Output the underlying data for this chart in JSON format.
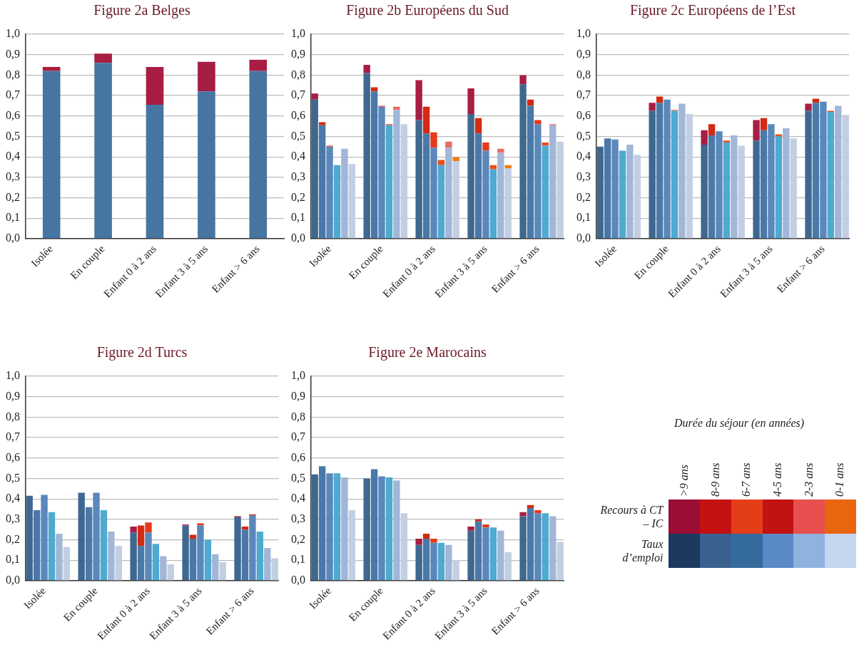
{
  "chart_data": [
    {
      "type": "bar",
      "title": "Figure 2a Belges",
      "stacked": true,
      "grid": "y",
      "categories": [
        "Isolée",
        "En couple",
        "Enfant 0 à 2 ans",
        "Enfant 3 à 5 ans",
        "Enfant > 6 ans"
      ],
      "ylim": [
        0,
        1
      ],
      "yticks": [
        {
          "value": 0,
          "label": "0,0"
        },
        {
          "value": 0.1,
          "label": "0,1"
        },
        {
          "value": 0.2,
          "label": "0,2"
        },
        {
          "value": 0.3,
          "label": "0,3"
        },
        {
          "value": 0.4,
          "label": "0,4"
        },
        {
          "value": 0.5,
          "label": "0,5"
        },
        {
          "value": 0.6,
          "label": "0,6"
        },
        {
          "value": 0.7,
          "label": "0,7"
        },
        {
          "value": 0.8,
          "label": "0,8"
        },
        {
          "value": 0.9,
          "label": "0,9"
        },
        {
          "value": 1,
          "label": "1,0"
        }
      ],
      "series": [
        {
          "color": "#4675a2",
          "values": [
            0.82,
            0.86,
            0.655,
            0.72,
            0.82
          ]
        },
        {
          "color": "#a81d43",
          "values": [
            0.02,
            0.045,
            0.185,
            0.145,
            0.055
          ]
        }
      ]
    },
    {
      "type": "bar",
      "title": "Figure 2b Européens du Sud",
      "stacked": true,
      "grid": "y",
      "categories": [
        null,
        null,
        "Isolée",
        null,
        null,
        null,
        null,
        null,
        null,
        "En couple",
        null,
        null,
        null,
        null,
        null,
        null,
        "Enfant 0 à 2 ans",
        null,
        null,
        null,
        null,
        null,
        null,
        "Enfant 3 à 5 ans",
        null,
        null,
        null,
        null,
        null,
        null,
        "Enfant > 6 ans",
        null,
        null,
        null
      ],
      "ylim": [
        0,
        1
      ],
      "yticks": [
        {
          "value": 0,
          "label": "0,0"
        },
        {
          "value": 0.1,
          "label": "0,1"
        },
        {
          "value": 0.2,
          "label": "0,2"
        },
        {
          "value": 0.3,
          "label": "0,3"
        },
        {
          "value": 0.4,
          "label": "0,4"
        },
        {
          "value": 0.5,
          "label": "0,5"
        },
        {
          "value": 0.6,
          "label": "0,6"
        },
        {
          "value": 0.7,
          "label": "0,7"
        },
        {
          "value": 0.8,
          "label": "0,8"
        },
        {
          "value": 0.9,
          "label": "0,9"
        },
        {
          "value": 1,
          "label": "1,0"
        }
      ],
      "series": [
        {
          "colors": [
            "#3f6890",
            "#4a78a8",
            "#5a88bb",
            "#4eaad0",
            "#a2b6d8",
            "#c2cfe3",
            null,
            "#3f6890",
            "#4a78a8",
            "#5a88bb",
            "#4eaad0",
            "#a2b6d8",
            "#c2cfe3",
            null,
            "#3f6890",
            "#4a78a8",
            "#5a88bb",
            "#4eaad0",
            "#a2b6d8",
            "#c2cfe3",
            null,
            "#3f6890",
            "#4a78a8",
            "#5a88bb",
            "#4eaad0",
            "#a2b6d8",
            "#c2cfe3",
            null,
            "#3f6890",
            "#4a78a8",
            "#5a88bb",
            "#4eaad0",
            "#a2b6d8",
            "#c2cfe3"
          ],
          "values": [
            0.68,
            0.555,
            0.45,
            0.36,
            0.44,
            0.365,
            null,
            0.81,
            0.72,
            0.645,
            0.555,
            0.63,
            0.56,
            null,
            0.58,
            0.515,
            0.445,
            0.36,
            0.445,
            0.38,
            null,
            0.61,
            0.515,
            0.43,
            0.34,
            0.42,
            0.345,
            null,
            0.755,
            0.65,
            0.56,
            0.455,
            0.555,
            0.475
          ]
        },
        {
          "colors": [
            "#a81d43",
            "#d32a12",
            "#e63a1a",
            "#e4501a",
            "#ec6b63",
            "#ef7d10",
            null,
            "#a81d43",
            "#d32a12",
            "#e63a1a",
            "#e4501a",
            "#ec6b63",
            "#ef7d10",
            null,
            "#a81d43",
            "#d32a12",
            "#e63a1a",
            "#e4501a",
            "#ec6b63",
            "#ef7d10",
            null,
            "#a81d43",
            "#d32a12",
            "#e63a1a",
            "#e4501a",
            "#ec6b63",
            "#ef7d10",
            null,
            "#a81d43",
            "#d32a12",
            "#e63a1a",
            "#e4501a",
            "#ec6b63",
            "#ef7d10"
          ],
          "values": [
            0.03,
            0.015,
            0.005,
            null,
            null,
            null,
            null,
            0.04,
            0.02,
            0.005,
            0.005,
            0.015,
            null,
            null,
            0.195,
            0.13,
            0.075,
            0.025,
            0.03,
            0.02,
            null,
            0.125,
            0.075,
            0.04,
            0.02,
            0.02,
            0.015,
            null,
            0.045,
            0.03,
            0.02,
            0.015,
            0.005,
            null
          ]
        }
      ]
    },
    {
      "type": "bar",
      "title": "Figure 2c Européens de l’Est",
      "stacked": true,
      "grid": "y",
      "categories": [
        null,
        null,
        "Isolée",
        null,
        null,
        null,
        null,
        null,
        null,
        "En couple",
        null,
        null,
        null,
        null,
        null,
        null,
        "Enfant 0 à 2 ans",
        null,
        null,
        null,
        null,
        null,
        null,
        "Enfant 3 à 5 ans",
        null,
        null,
        null,
        null,
        null,
        null,
        "Enfant > 6 ans",
        null,
        null,
        null
      ],
      "ylim": [
        0,
        1
      ],
      "yticks": [
        {
          "value": 0,
          "label": "0,0"
        },
        {
          "value": 0.1,
          "label": "0,1"
        },
        {
          "value": 0.2,
          "label": "0,2"
        },
        {
          "value": 0.3,
          "label": "0,3"
        },
        {
          "value": 0.4,
          "label": "0,4"
        },
        {
          "value": 0.5,
          "label": "0,5"
        },
        {
          "value": 0.6,
          "label": "0,6"
        },
        {
          "value": 0.7,
          "label": "0,7"
        },
        {
          "value": 0.8,
          "label": "0,8"
        },
        {
          "value": 0.9,
          "label": "0,9"
        },
        {
          "value": 1,
          "label": "1,0"
        }
      ],
      "series": [
        {
          "colors": [
            "#3f6890",
            "#4a78a8",
            "#5a88bb",
            "#4eaad0",
            "#a2b6d8",
            "#c2cfe3",
            null,
            "#3f6890",
            "#4a78a8",
            "#5a88bb",
            "#4eaad0",
            "#a2b6d8",
            "#c2cfe3",
            null,
            "#3f6890",
            "#4a78a8",
            "#5a88bb",
            "#4eaad0",
            "#a2b6d8",
            "#c2cfe3",
            null,
            "#3f6890",
            "#4a78a8",
            "#5a88bb",
            "#4eaad0",
            "#a2b6d8",
            "#c2cfe3",
            null,
            "#3f6890",
            "#4a78a8",
            "#5a88bb",
            "#4eaad0",
            "#a2b6d8",
            "#c2cfe3"
          ],
          "values": [
            0.45,
            0.49,
            0.485,
            0.43,
            0.46,
            0.41,
            null,
            0.625,
            0.665,
            0.68,
            0.625,
            0.66,
            0.61,
            null,
            0.46,
            0.505,
            0.525,
            0.47,
            0.505,
            0.455,
            null,
            0.48,
            0.53,
            0.56,
            0.5,
            0.54,
            0.49,
            null,
            0.625,
            0.665,
            0.67,
            0.62,
            0.65,
            0.605
          ]
        },
        {
          "colors": [
            "#a81d43",
            "#d32a12",
            "#e63a1a",
            "#e4501a",
            "#ec6b63",
            "#ef7d10",
            null,
            "#a81d43",
            "#d32a12",
            "#e63a1a",
            "#e4501a",
            "#ec6b63",
            "#ef7d10",
            null,
            "#a81d43",
            "#d32a12",
            "#e63a1a",
            "#e4501a",
            "#ec6b63",
            "#ef7d10",
            null,
            "#a81d43",
            "#d32a12",
            "#e63a1a",
            "#e4501a",
            "#ec6b63",
            "#ef7d10",
            null,
            "#a81d43",
            "#d32a12",
            "#e63a1a",
            "#e4501a",
            "#ec6b63",
            "#ef7d10"
          ],
          "values": [
            null,
            null,
            null,
            null,
            null,
            null,
            null,
            0.04,
            0.03,
            null,
            0.005,
            null,
            null,
            null,
            0.07,
            0.055,
            null,
            0.01,
            null,
            null,
            null,
            0.1,
            0.06,
            null,
            0.01,
            null,
            null,
            null,
            0.035,
            0.02,
            null,
            0.005,
            null,
            null
          ]
        }
      ]
    },
    {
      "type": "bar",
      "title": "Figure 2d Turcs",
      "stacked": true,
      "grid": "y",
      "categories": [
        null,
        null,
        "Isolée",
        null,
        null,
        null,
        null,
        null,
        null,
        "En couple",
        null,
        null,
        null,
        null,
        null,
        null,
        "Enfant 0 à 2 ans",
        null,
        null,
        null,
        null,
        null,
        null,
        "Enfant 3 à 5 ans",
        null,
        null,
        null,
        null,
        null,
        null,
        "Enfant > 6 ans",
        null,
        null,
        null
      ],
      "ylim": [
        0,
        1
      ],
      "yticks": [
        {
          "value": 0,
          "label": "0,0"
        },
        {
          "value": 0.1,
          "label": "0,1"
        },
        {
          "value": 0.2,
          "label": "0,2"
        },
        {
          "value": 0.3,
          "label": "0,3"
        },
        {
          "value": 0.4,
          "label": "0,4"
        },
        {
          "value": 0.5,
          "label": "0,5"
        },
        {
          "value": 0.6,
          "label": "0,6"
        },
        {
          "value": 0.7,
          "label": "0,7"
        },
        {
          "value": 0.8,
          "label": "0,8"
        },
        {
          "value": 0.9,
          "label": "0,9"
        },
        {
          "value": 1,
          "label": "1,0"
        }
      ],
      "series": [
        {
          "colors": [
            "#3f6890",
            "#4a78a8",
            "#5a88bb",
            "#4eaad0",
            "#a2b6d8",
            "#c2cfe3",
            null,
            "#3f6890",
            "#4a78a8",
            "#5a88bb",
            "#4eaad0",
            "#a2b6d8",
            "#c2cfe3",
            null,
            "#3f6890",
            "#4a78a8",
            "#5a88bb",
            "#4eaad0",
            "#a2b6d8",
            "#c2cfe3",
            null,
            "#3f6890",
            "#4a78a8",
            "#5a88bb",
            "#4eaad0",
            "#a2b6d8",
            "#c2cfe3",
            null,
            "#3f6890",
            "#4a78a8",
            "#5a88bb",
            "#4eaad0",
            "#a2b6d8",
            "#c2cfe3"
          ],
          "values": [
            0.415,
            0.345,
            0.42,
            0.335,
            0.23,
            0.165,
            null,
            0.43,
            0.36,
            0.43,
            0.345,
            0.24,
            0.17,
            null,
            0.235,
            0.17,
            0.235,
            0.18,
            0.12,
            0.08,
            null,
            0.27,
            0.205,
            0.27,
            0.2,
            0.13,
            0.09,
            null,
            0.31,
            0.25,
            0.32,
            0.24,
            0.16,
            0.11
          ]
        },
        {
          "colors": [
            "#a81d43",
            "#d32a12",
            "#e63a1a",
            "#e4501a",
            "#ec6b63",
            "#ef7d10",
            null,
            "#a81d43",
            "#d32a12",
            "#e63a1a",
            "#e4501a",
            "#ec6b63",
            "#ef7d10",
            null,
            "#a81d43",
            "#d32a12",
            "#e63a1a",
            "#e4501a",
            "#ec6b63",
            "#ef7d10",
            null,
            "#a81d43",
            "#d32a12",
            "#e63a1a",
            "#e4501a",
            "#ec6b63",
            "#ef7d10",
            null,
            "#a81d43",
            "#d32a12",
            "#e63a1a",
            "#e4501a",
            "#ec6b63",
            "#ef7d10"
          ],
          "values": [
            null,
            null,
            null,
            null,
            null,
            null,
            null,
            null,
            null,
            null,
            null,
            null,
            null,
            null,
            0.03,
            0.1,
            0.05,
            null,
            null,
            null,
            null,
            0.005,
            0.02,
            0.01,
            null,
            null,
            null,
            null,
            0.005,
            0.015,
            0.005,
            null,
            null,
            null
          ]
        }
      ]
    },
    {
      "type": "bar",
      "title": "Figure 2e Marocains",
      "stacked": true,
      "grid": "y",
      "categories": [
        null,
        null,
        "Isolée",
        null,
        null,
        null,
        null,
        null,
        null,
        "En couple",
        null,
        null,
        null,
        null,
        null,
        null,
        "Enfant 0 à 2 ans",
        null,
        null,
        null,
        null,
        null,
        null,
        "Enfant 3 à 5 ans",
        null,
        null,
        null,
        null,
        null,
        null,
        "Enfant > 6 ans",
        null,
        null,
        null
      ],
      "ylim": [
        0,
        1
      ],
      "yticks": [
        {
          "value": 0,
          "label": "0,0"
        },
        {
          "value": 0.1,
          "label": "0,1"
        },
        {
          "value": 0.2,
          "label": "0,2"
        },
        {
          "value": 0.3,
          "label": "0,3"
        },
        {
          "value": 0.4,
          "label": "0,4"
        },
        {
          "value": 0.5,
          "label": "0,5"
        },
        {
          "value": 0.6,
          "label": "0,6"
        },
        {
          "value": 0.7,
          "label": "0,7"
        },
        {
          "value": 0.8,
          "label": "0,8"
        },
        {
          "value": 0.9,
          "label": "0,9"
        },
        {
          "value": 1,
          "label": "1,0"
        }
      ],
      "series": [
        {
          "colors": [
            "#3f6890",
            "#4a78a8",
            "#5a88bb",
            "#4eaad0",
            "#a2b6d8",
            "#c2cfe3",
            null,
            "#3f6890",
            "#4a78a8",
            "#5a88bb",
            "#4eaad0",
            "#a2b6d8",
            "#c2cfe3",
            null,
            "#3f6890",
            "#4a78a8",
            "#5a88bb",
            "#4eaad0",
            "#a2b6d8",
            "#c2cfe3",
            null,
            "#3f6890",
            "#4a78a8",
            "#5a88bb",
            "#4eaad0",
            "#a2b6d8",
            "#c2cfe3",
            null,
            "#3f6890",
            "#4a78a8",
            "#5a88bb",
            "#4eaad0",
            "#a2b6d8",
            "#c2cfe3"
          ],
          "values": [
            0.52,
            0.56,
            0.525,
            0.525,
            0.505,
            0.345,
            null,
            0.5,
            0.545,
            0.51,
            0.505,
            0.49,
            0.33,
            null,
            0.175,
            0.205,
            0.185,
            0.185,
            0.175,
            0.1,
            null,
            0.245,
            0.29,
            0.26,
            0.26,
            0.245,
            0.14,
            null,
            0.315,
            0.355,
            0.33,
            0.33,
            0.315,
            0.19
          ]
        },
        {
          "colors": [
            "#a81d43",
            "#d32a12",
            "#e63a1a",
            "#e4501a",
            "#ec6b63",
            "#ef7d10",
            null,
            "#a81d43",
            "#d32a12",
            "#e63a1a",
            "#e4501a",
            "#ec6b63",
            "#ef7d10",
            null,
            "#a81d43",
            "#d32a12",
            "#e63a1a",
            "#e4501a",
            "#ec6b63",
            "#ef7d10",
            null,
            "#a81d43",
            "#d32a12",
            "#e63a1a",
            "#e4501a",
            "#ec6b63",
            "#ef7d10",
            null,
            "#a81d43",
            "#d32a12",
            "#e63a1a",
            "#e4501a",
            "#ec6b63",
            "#ef7d10"
          ],
          "values": [
            null,
            null,
            null,
            null,
            null,
            null,
            null,
            null,
            null,
            null,
            null,
            null,
            null,
            null,
            0.03,
            0.025,
            0.02,
            null,
            null,
            null,
            null,
            0.02,
            0.01,
            0.015,
            null,
            null,
            null,
            null,
            0.02,
            0.015,
            0.015,
            null,
            null,
            null
          ]
        }
      ]
    },
    {
      "type": "other",
      "legend_title": "Durée du séjour (en années)",
      "categories": [
        ">9 ans",
        "8-9 ans",
        "6-7 ans",
        "4-5 ans",
        "2-3 ans",
        "0-1 ans"
      ],
      "series": [
        {
          "name": "Recours à CT – IC",
          "colors": [
            "#9b0d35",
            "#c41212",
            "#e43e18",
            "#c21212",
            "#e85050",
            "#ea6510"
          ],
          "values": [
            null,
            null,
            null,
            null,
            null,
            null
          ]
        },
        {
          "name": "Taux d’emploi",
          "colors": [
            "#1c3a5e",
            "#3a6190",
            "#346b9c",
            "#5a8ac6",
            "#8fb3de",
            "#c5d6ef"
          ],
          "values": [
            null,
            null,
            null,
            null,
            null,
            null
          ]
        }
      ]
    }
  ]
}
